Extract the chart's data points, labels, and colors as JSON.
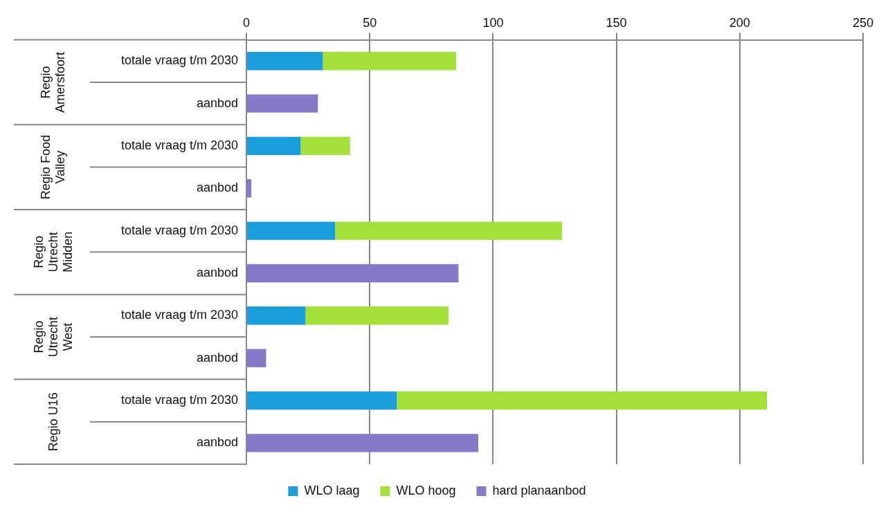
{
  "chart_data": {
    "type": "bar",
    "orientation": "horizontal",
    "stacked": true,
    "categories": [
      "totale vraag t/m 2030",
      "aanbod",
      "totale vraag t/m 2030",
      "aanbod",
      "totale vraag t/m 2030",
      "aanbod",
      "totale vraag t/m 2030",
      "aanbod",
      "totale vraag t/m 2030",
      "aanbod"
    ],
    "series": [
      {
        "name": "WLO laag",
        "color": "#1a9fdc",
        "values": [
          31,
          null,
          22,
          null,
          36,
          null,
          24,
          null,
          61,
          null
        ]
      },
      {
        "name": "WLO hoog",
        "color": "#a3e03a",
        "values": [
          54,
          null,
          20,
          null,
          92,
          null,
          58,
          null,
          150,
          null
        ]
      },
      {
        "name": "hard planaanbod",
        "color": "#857ac8",
        "values": [
          null,
          29,
          null,
          2,
          null,
          86,
          null,
          8,
          null,
          94
        ]
      }
    ],
    "xlim": [
      0,
      250
    ],
    "xticks": [
      0,
      50,
      100,
      150,
      200,
      250
    ],
    "grid": "x",
    "legend": "bottom",
    "annotations": [
      "Regio Amersfoort",
      "Regio Food Valley",
      "Regio Utrecht Midden",
      "Regio Utrecht West",
      "Regio U16"
    ]
  }
}
